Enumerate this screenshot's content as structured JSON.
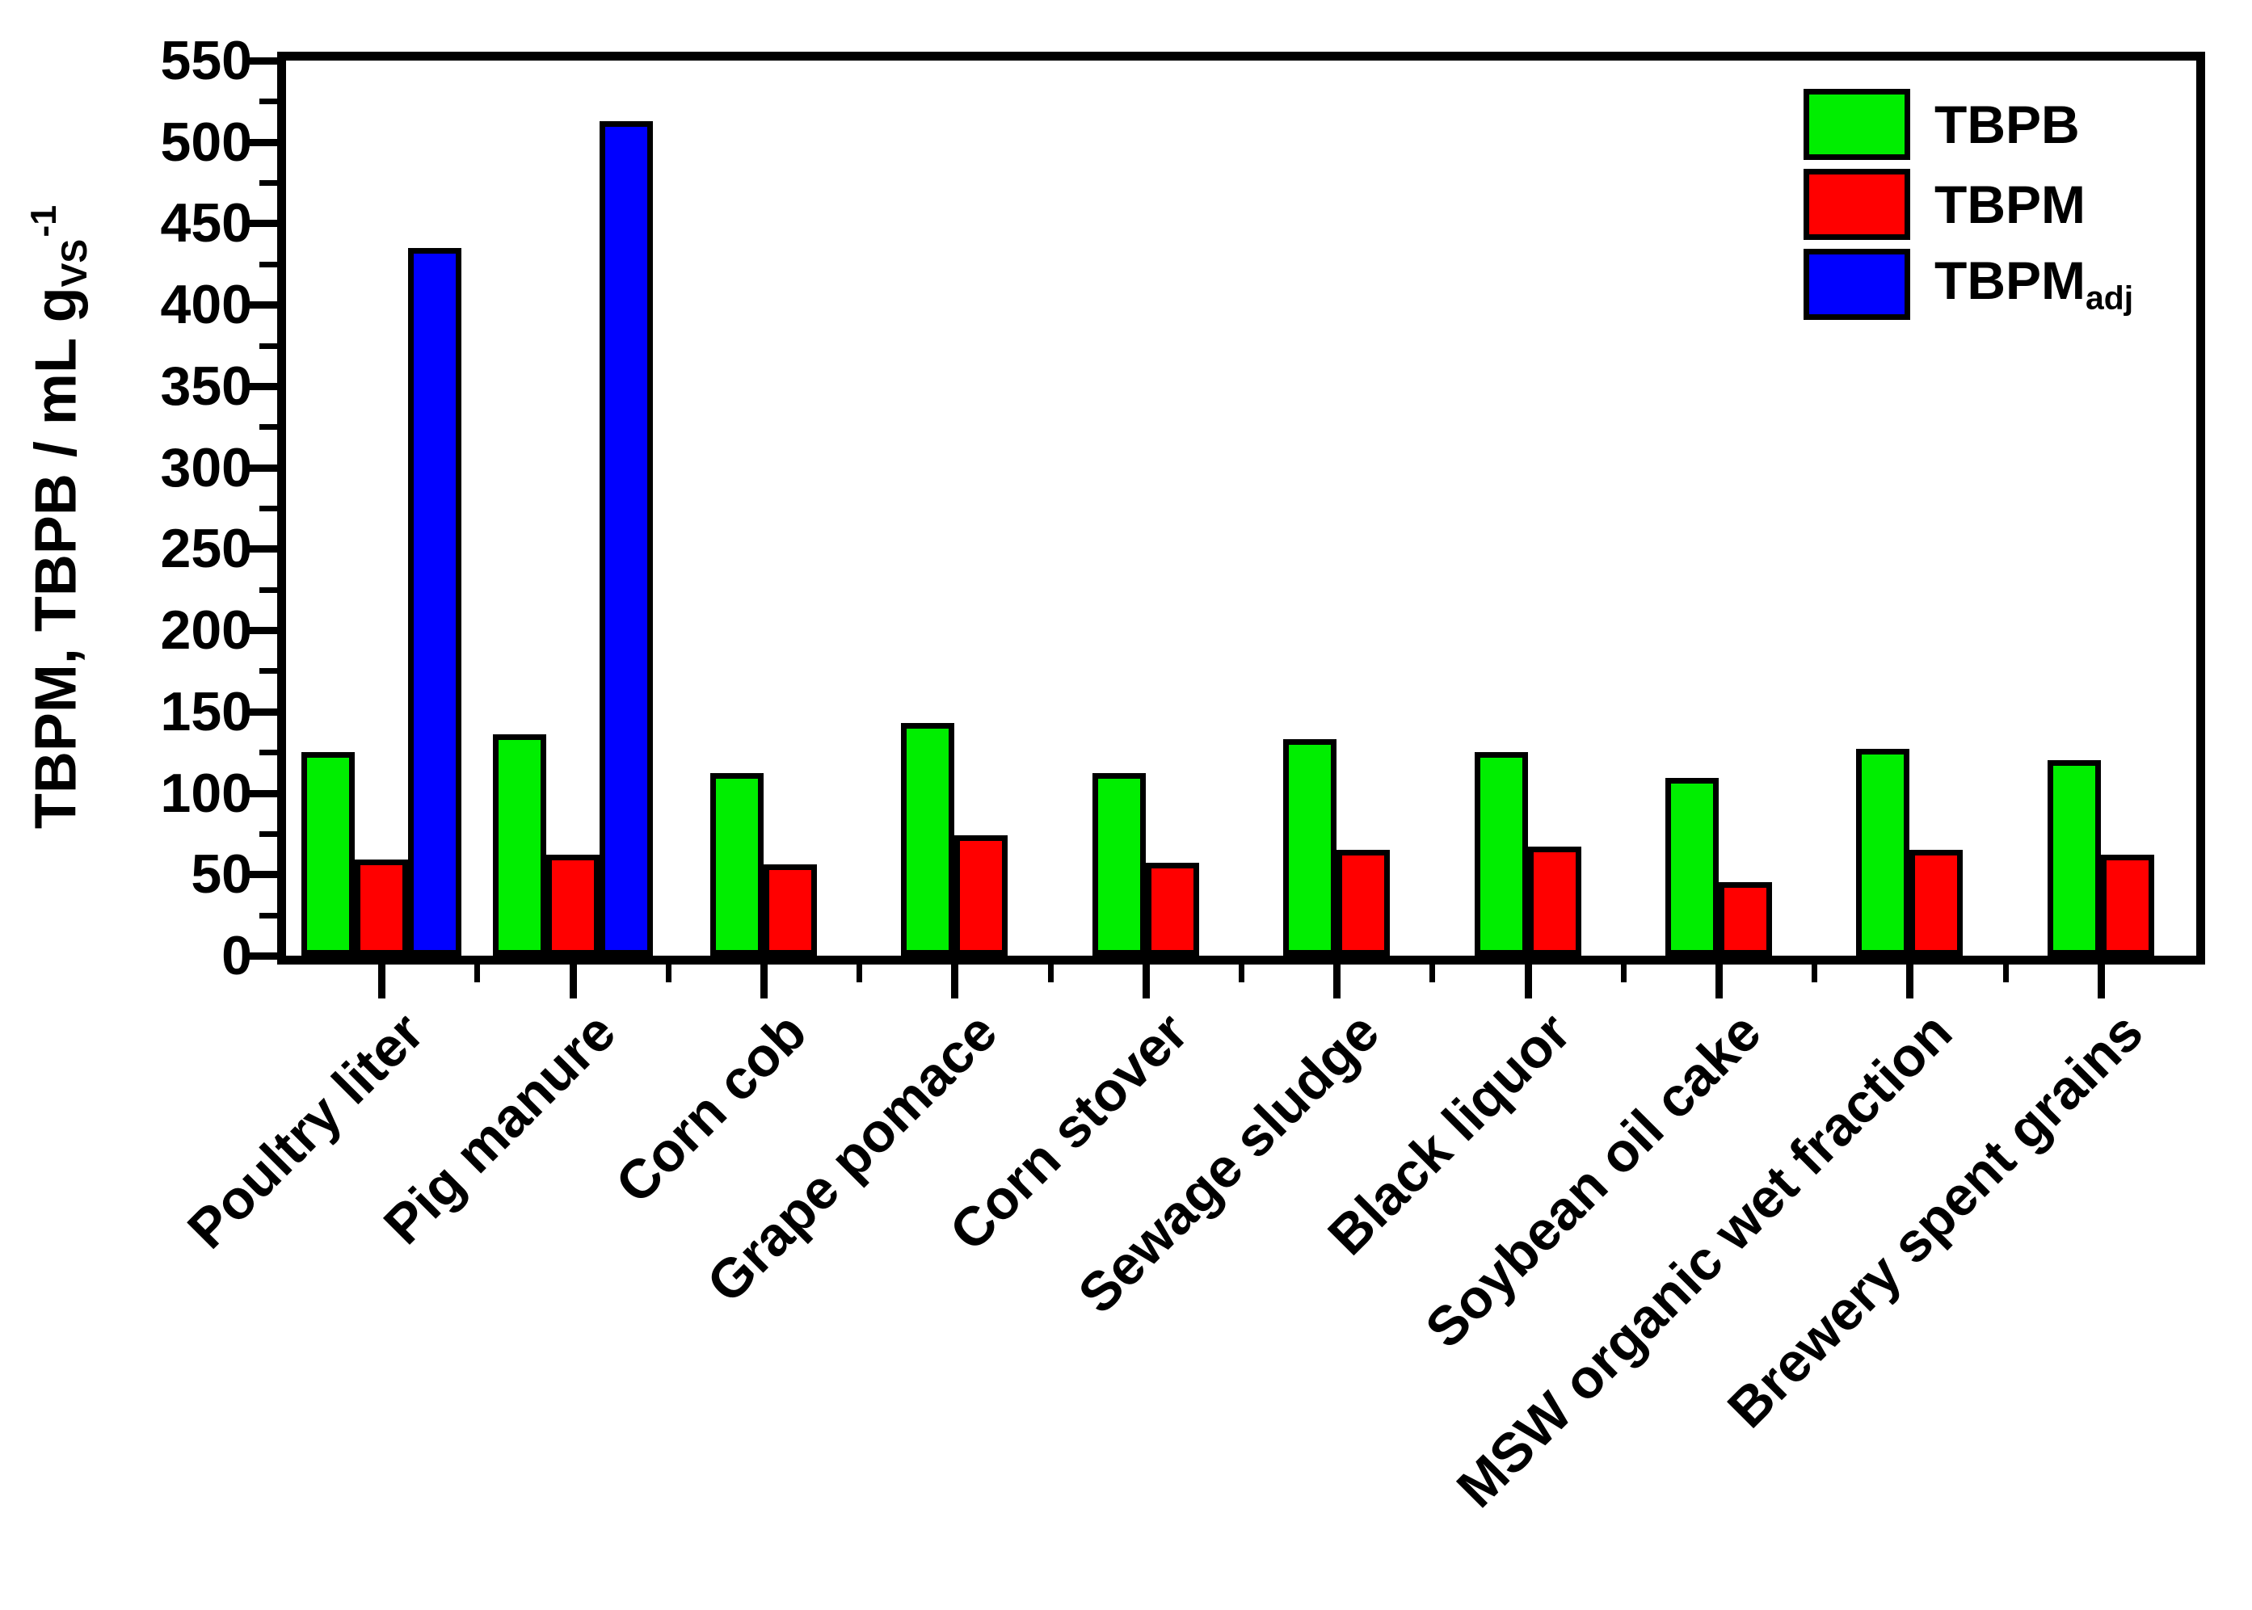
{
  "figure": {
    "background": "#ffffff",
    "axis_color": "#000000",
    "ylabel": {
      "main": "TBPM, TBPB / mL g",
      "sub": "VS",
      "sup": "-1"
    }
  },
  "chart_data": {
    "type": "bar",
    "title": "",
    "xlabel": "",
    "ylabel": "TBPM, TBPB / mL gVS-1",
    "categories": [
      "Poultry liter",
      "Pig manure",
      "Corn cob",
      "Grape pomace",
      "Corn stover",
      "Sewage sludge",
      "Black liquor",
      "Soybean oil cake",
      "MSW organic wet fraction",
      "Brewery spent grains"
    ],
    "series": [
      {
        "name": "TBPB",
        "sub": "",
        "color": "#00ee00",
        "values": [
          125,
          136,
          112,
          143,
          112,
          133,
          125,
          109,
          127,
          120
        ]
      },
      {
        "name": "TBPM",
        "sub": "",
        "color": "#ff0000",
        "values": [
          59,
          62,
          56,
          74,
          57,
          65,
          67,
          45,
          65,
          62
        ]
      },
      {
        "name": "TBPM",
        "sub": "adj",
        "color": "#0000ff",
        "values": [
          435,
          513,
          null,
          null,
          null,
          null,
          null,
          null,
          null,
          null
        ]
      }
    ],
    "ylim": [
      0,
      550
    ],
    "yticks": [
      0,
      50,
      100,
      150,
      200,
      250,
      300,
      350,
      400,
      450,
      500,
      550
    ],
    "ytick_minor_step": 25,
    "grid": false,
    "legend_position": "top-right",
    "xtick_label_rotation_deg": 45
  }
}
